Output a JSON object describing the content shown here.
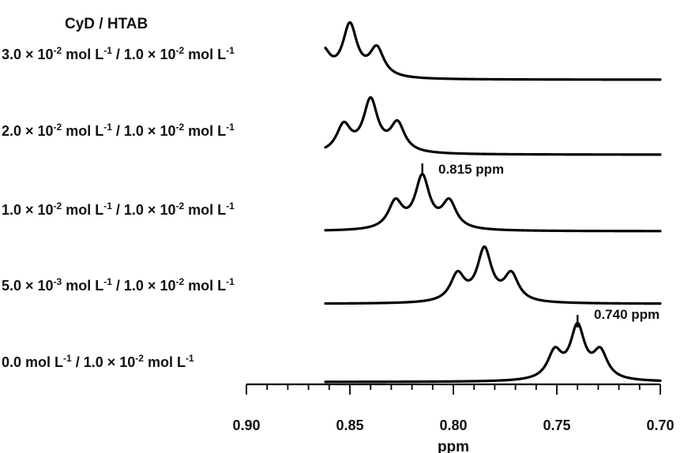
{
  "chart_data": {
    "type": "line",
    "title": "CyD / HTAB",
    "xlabel": "ppm",
    "xlim": [
      0.9,
      0.7
    ],
    "x_ticks": [
      "0.90",
      "0.85",
      "0.80",
      "0.75",
      "0.70"
    ],
    "annotations": [
      {
        "text": "0.815 ppm",
        "x": 0.815
      },
      {
        "text": "0.740 ppm",
        "x": 0.74
      }
    ],
    "series": [
      {
        "label": {
          "a_mant": "3.0",
          "a_exp": "-2",
          "b_mant": "1.0",
          "b_exp": "-2"
        },
        "peaks": [
          {
            "x": 0.863,
            "h": 0.52
          },
          {
            "x": 0.85,
            "h": 1.0
          },
          {
            "x": 0.837,
            "h": 0.55
          }
        ]
      },
      {
        "label": {
          "a_mant": "2.0",
          "a_exp": "-2",
          "b_mant": "1.0",
          "b_exp": "-2"
        },
        "peaks": [
          {
            "x": 0.853,
            "h": 0.52
          },
          {
            "x": 0.84,
            "h": 1.0
          },
          {
            "x": 0.827,
            "h": 0.55
          }
        ]
      },
      {
        "label": {
          "a_mant": "1.0",
          "a_exp": "-2",
          "b_mant": "1.0",
          "b_exp": "-2"
        },
        "peaks": [
          {
            "x": 0.828,
            "h": 0.52
          },
          {
            "x": 0.815,
            "h": 1.0
          },
          {
            "x": 0.802,
            "h": 0.52
          }
        ]
      },
      {
        "label": {
          "a_mant": "5.0",
          "a_exp": "-3",
          "b_mant": "1.0",
          "b_exp": "-2"
        },
        "peaks": [
          {
            "x": 0.798,
            "h": 0.52
          },
          {
            "x": 0.785,
            "h": 1.0
          },
          {
            "x": 0.772,
            "h": 0.52
          }
        ]
      },
      {
        "label": {
          "a_zero": "0.0",
          "b_mant": "1.0",
          "b_exp": "-2"
        },
        "peaks": [
          {
            "x": 0.751,
            "h": 0.52
          },
          {
            "x": 0.74,
            "h": 1.0
          },
          {
            "x": 0.729,
            "h": 0.52
          }
        ]
      }
    ]
  }
}
